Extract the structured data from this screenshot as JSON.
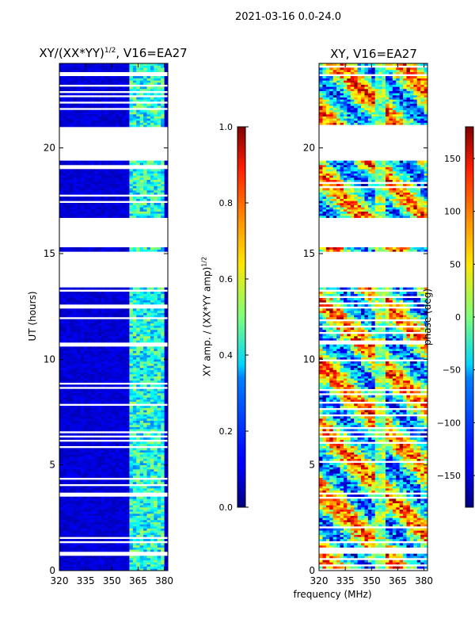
{
  "figure_title": "2021-03-16 0.0-24.0",
  "chart_data": [
    {
      "type": "heatmap",
      "title": "XY/(XX*YY)^1/2, V16=EA27",
      "title_base": "XY/(XX*YY)",
      "title_sup": "1/2",
      "title_rest": ", V16=EA27",
      "xlabel": "",
      "ylabel": "UT (hours)",
      "xlim": [
        320,
        382
      ],
      "ylim": [
        0,
        24
      ],
      "xticks": [
        320,
        335,
        350,
        365,
        380
      ],
      "yticks": [
        0,
        5,
        10,
        15,
        20
      ],
      "colorbar": {
        "label": "XY amp. / (XX*YY amp)^1/2",
        "label_base": "XY amp. / (XX*YY amp)",
        "label_sup": "1/2",
        "range": [
          0.0,
          1.0
        ],
        "ticks": [
          0.0,
          0.2,
          0.4,
          0.6,
          0.8,
          1.0
        ],
        "tick_labels": [
          "0.0",
          "0.2",
          "0.4",
          "0.6",
          "0.8",
          "1.0"
        ],
        "colormap": "jet"
      },
      "data_gaps_hours": [
        [
          13.4,
          15.1
        ],
        [
          15.3,
          16.7
        ],
        [
          19.4,
          21.0
        ]
      ]
    },
    {
      "type": "heatmap",
      "title": "XY, V16=EA27",
      "xlabel": "frequency (MHz)",
      "ylabel": "",
      "xlim": [
        320,
        382
      ],
      "ylim": [
        0,
        24
      ],
      "xticks": [
        320,
        335,
        350,
        365,
        380
      ],
      "yticks": [
        0,
        5,
        10,
        15,
        20
      ],
      "colorbar": {
        "label": "phase (deg)",
        "range": [
          -180,
          180
        ],
        "ticks": [
          -150,
          -100,
          -50,
          0,
          50,
          100,
          150
        ],
        "tick_labels": [
          "−150",
          "−100",
          "−50",
          "0",
          "50",
          "100",
          "150"
        ],
        "colormap": "jet"
      },
      "data_gaps_hours": [
        [
          13.4,
          15.1
        ],
        [
          15.3,
          16.7
        ],
        [
          19.4,
          21.0
        ]
      ]
    }
  ]
}
